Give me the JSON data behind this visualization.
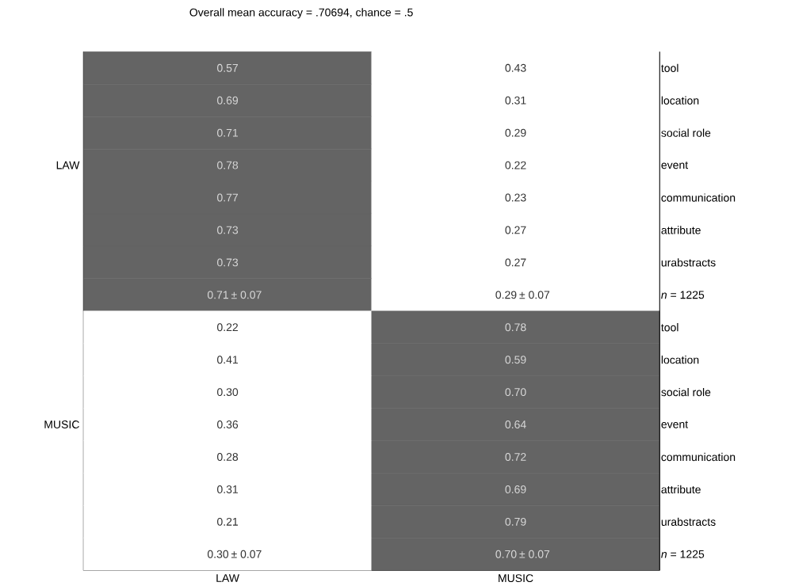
{
  "chart_data": {
    "type": "heatmap",
    "title": "Overall mean accuracy = .70694, chance = .5",
    "categories": [
      "LAW",
      "MUSIC"
    ],
    "y_categories": [
      null,
      null,
      null,
      "LAW",
      null,
      null,
      null,
      null,
      null,
      null,
      null,
      "MUSIC",
      null,
      null,
      null,
      null
    ],
    "y2_categories": [
      "tool",
      "location",
      "social role",
      "event",
      "communication",
      "attribute",
      "urabstracts",
      "*n* = 1225",
      "tool",
      "location",
      "social role",
      "event",
      "communication",
      "attribute",
      "urabstracts",
      "*n* = 1225"
    ],
    "cells": [
      [
        0.57,
        0.43
      ],
      [
        0.69,
        0.31
      ],
      [
        0.71,
        0.29
      ],
      [
        0.78,
        0.22
      ],
      [
        0.77,
        0.23
      ],
      [
        0.73,
        0.27
      ],
      [
        0.73,
        0.27
      ],
      [
        0.71,
        0.29
      ],
      [
        0.22,
        0.78
      ],
      [
        0.41,
        0.59
      ],
      [
        0.3,
        0.7
      ],
      [
        0.36,
        0.64
      ],
      [
        0.28,
        0.72
      ],
      [
        0.31,
        0.69
      ],
      [
        0.21,
        0.79
      ],
      [
        0.3,
        0.7
      ]
    ],
    "cell_labels": [
      [
        "0.57",
        "0.43"
      ],
      [
        "0.69",
        "0.31"
      ],
      [
        "0.71",
        "0.29"
      ],
      [
        "0.78",
        "0.22"
      ],
      [
        "0.77",
        "0.23"
      ],
      [
        "0.73",
        "0.27"
      ],
      [
        "0.73",
        "0.27"
      ],
      [
        "0.71",
        "0.29"
      ],
      [
        "0.22",
        "0.78"
      ],
      [
        "0.41",
        "0.59"
      ],
      [
        "0.30",
        "0.70"
      ],
      [
        "0.36",
        "0.64"
      ],
      [
        "0.28",
        "0.72"
      ],
      [
        "0.31",
        "0.69"
      ],
      [
        "0.21",
        "0.79"
      ],
      [
        "0.30",
        "0.70"
      ]
    ],
    "annotations": [
      "± 0.07",
      "± 0.07",
      "± 0.07",
      "± 0.07"
    ]
  }
}
